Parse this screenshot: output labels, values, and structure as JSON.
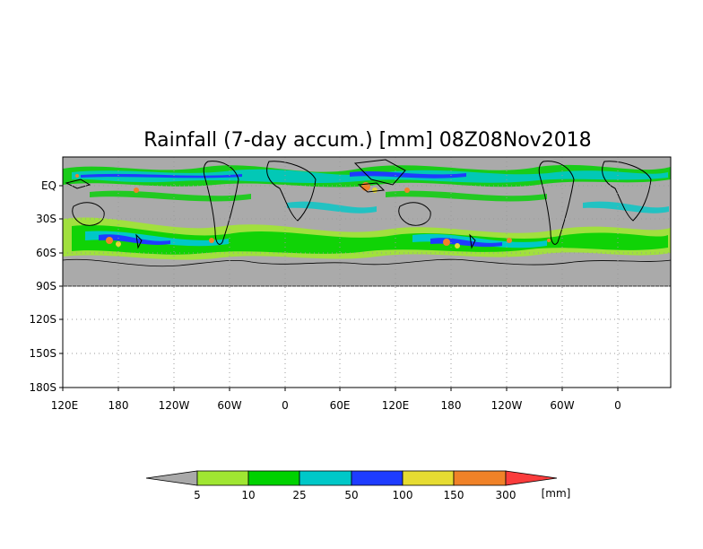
{
  "title": "Rainfall (7-day accum.) [mm] 08Z08Nov2018",
  "map": {
    "x_ticks": [
      "120E",
      "180",
      "120W",
      "60W",
      "0",
      "60E",
      "120E",
      "180",
      "120W",
      "60W",
      "0"
    ],
    "y_ticks": [
      "EQ",
      "30S",
      "60S",
      "90S",
      "120S",
      "150S",
      "180S"
    ],
    "colors": {
      "ocean_land_nodata": "#aaaaaa",
      "coast": "#000000",
      "grid": "#999999"
    }
  },
  "colorbar": {
    "unit": "[mm]",
    "levels": [
      "5",
      "10",
      "25",
      "50",
      "100",
      "150",
      "300"
    ],
    "colors": [
      "#a9a9a9",
      "#a0e632",
      "#00d200",
      "#00c8c8",
      "#1e3cff",
      "#e6dc32",
      "#f08228",
      "#fa3c3c"
    ]
  }
}
